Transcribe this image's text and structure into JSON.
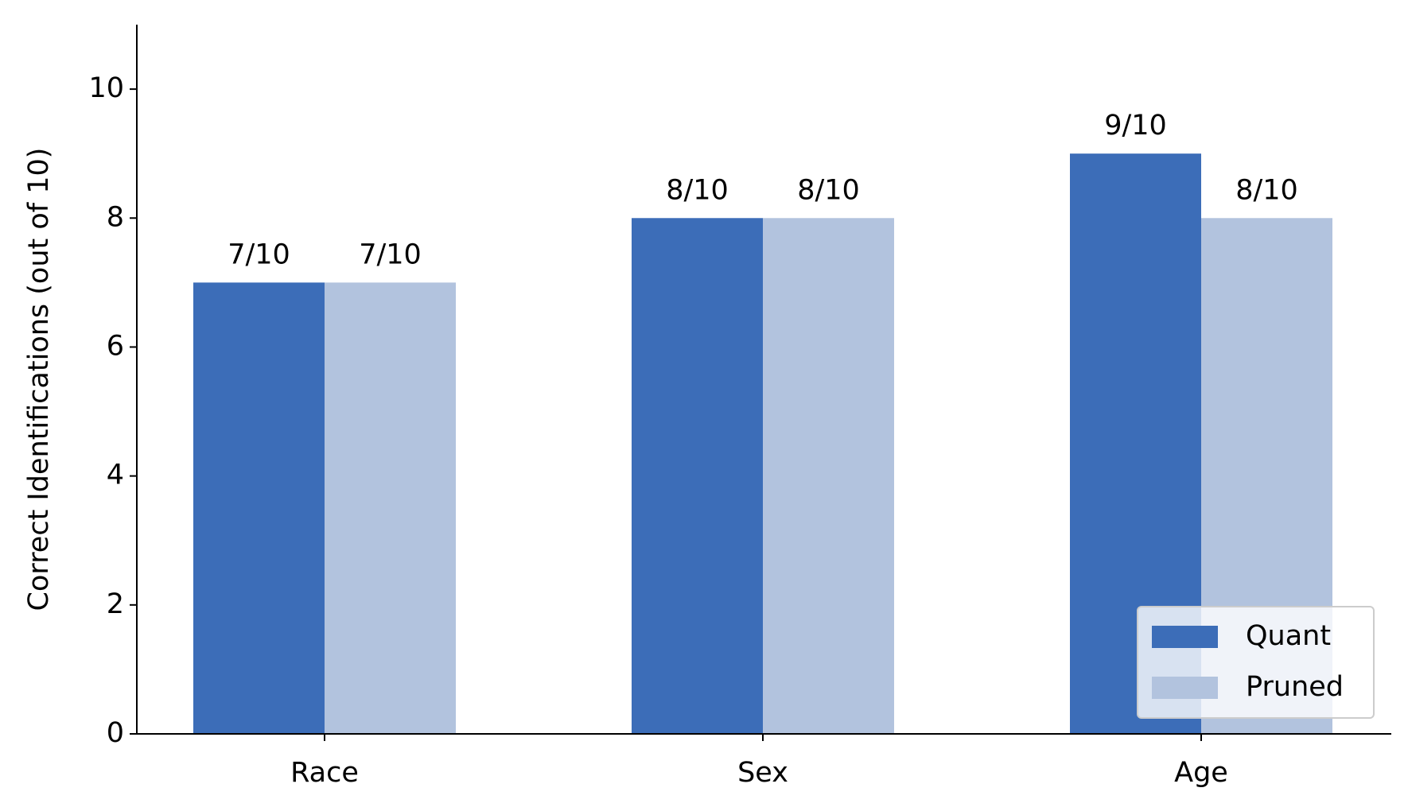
{
  "chart_data": {
    "type": "bar",
    "y_label": "Correct Identifications (out of 10)",
    "categories": [
      "Race",
      "Sex",
      "Age"
    ],
    "series": [
      {
        "name": "Quant",
        "color": "#3c6db8",
        "values": [
          7,
          8,
          9
        ],
        "value_labels": [
          "7/10",
          "8/10",
          "9/10"
        ]
      },
      {
        "name": "Pruned",
        "color": "#b2c3de",
        "values": [
          7,
          8,
          8
        ],
        "value_labels": [
          "7/10",
          "8/10",
          "8/10"
        ]
      }
    ],
    "ylim": [
      0,
      11
    ],
    "yticks": [
      0,
      2,
      4,
      6,
      8,
      10
    ],
    "legend": "lower right"
  }
}
